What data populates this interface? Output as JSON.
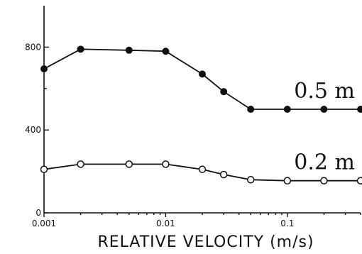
{
  "chart_data": {
    "type": "line",
    "title": "",
    "xlabel": "RELATIVE VELOCITY (m/s)",
    "ylabel": "",
    "xscale": "log",
    "xlim": [
      0.001,
      0.4
    ],
    "ylim": [
      0,
      1000
    ],
    "x_ticks": [
      0.001,
      0.01,
      0.1
    ],
    "x_tick_labels": [
      "0.001",
      "0.01",
      "0.1"
    ],
    "y_ticks": [
      0,
      400,
      800
    ],
    "y_tick_labels": [
      "0",
      "400",
      "800"
    ],
    "grid": false,
    "legend": "none",
    "series": [
      {
        "name": "0.5 m",
        "marker": "filled-circle",
        "x": [
          0.001,
          0.002,
          0.005,
          0.01,
          0.02,
          0.03,
          0.05,
          0.1,
          0.2,
          0.4
        ],
        "y": [
          695,
          790,
          785,
          780,
          670,
          585,
          500,
          500,
          500,
          500
        ]
      },
      {
        "name": "0.2 m",
        "marker": "open-circle",
        "x": [
          0.001,
          0.002,
          0.005,
          0.01,
          0.02,
          0.03,
          0.05,
          0.1,
          0.2,
          0.4
        ],
        "y": [
          210,
          235,
          235,
          235,
          210,
          185,
          160,
          155,
          155,
          155
        ]
      }
    ]
  }
}
